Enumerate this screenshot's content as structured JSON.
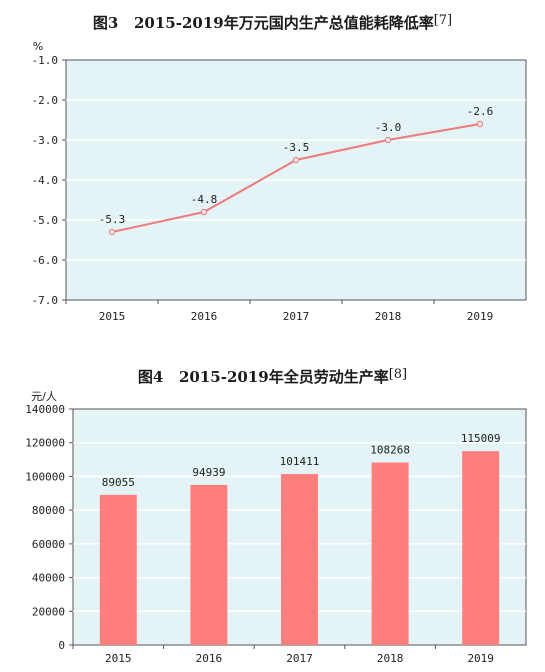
{
  "chart_data": [
    {
      "type": "line",
      "title_prefix": "图3",
      "title": "2015-2019年万元国内生产总值能耗降低率",
      "footnote": "[7]",
      "unit": "%",
      "categories": [
        "2015",
        "2016",
        "2017",
        "2018",
        "2019"
      ],
      "values": [
        -5.3,
        -4.8,
        -3.5,
        -3.0,
        -2.6
      ],
      "value_labels": [
        "-5.3",
        "-4.8",
        "-3.5",
        "-3.0",
        "-2.6"
      ],
      "ylim": [
        -7.0,
        -1.0
      ],
      "yticks": [
        -1.0,
        -2.0,
        -3.0,
        -4.0,
        -5.0,
        -6.0,
        -7.0
      ],
      "ytick_labels": [
        "-1.0",
        "-2.0",
        "-3.0",
        "-4.0",
        "-5.0",
        "-6.0",
        "-7.0"
      ],
      "grid": true,
      "line_color": "#ef7b7b",
      "plot_bg": "#e3f3f6"
    },
    {
      "type": "bar",
      "title_prefix": "图4",
      "title": "2015-2019年全员劳动生产率",
      "footnote": "[8]",
      "unit": "元/人",
      "categories": [
        "2015",
        "2016",
        "2017",
        "2018",
        "2019"
      ],
      "values": [
        89055,
        94939,
        101411,
        108268,
        115009
      ],
      "ylim": [
        0,
        140000
      ],
      "yticks": [
        0,
        20000,
        40000,
        60000,
        80000,
        100000,
        120000,
        140000
      ],
      "grid": true,
      "bar_color": "#ff7f7f",
      "plot_bg": "#e3f3f6"
    }
  ]
}
